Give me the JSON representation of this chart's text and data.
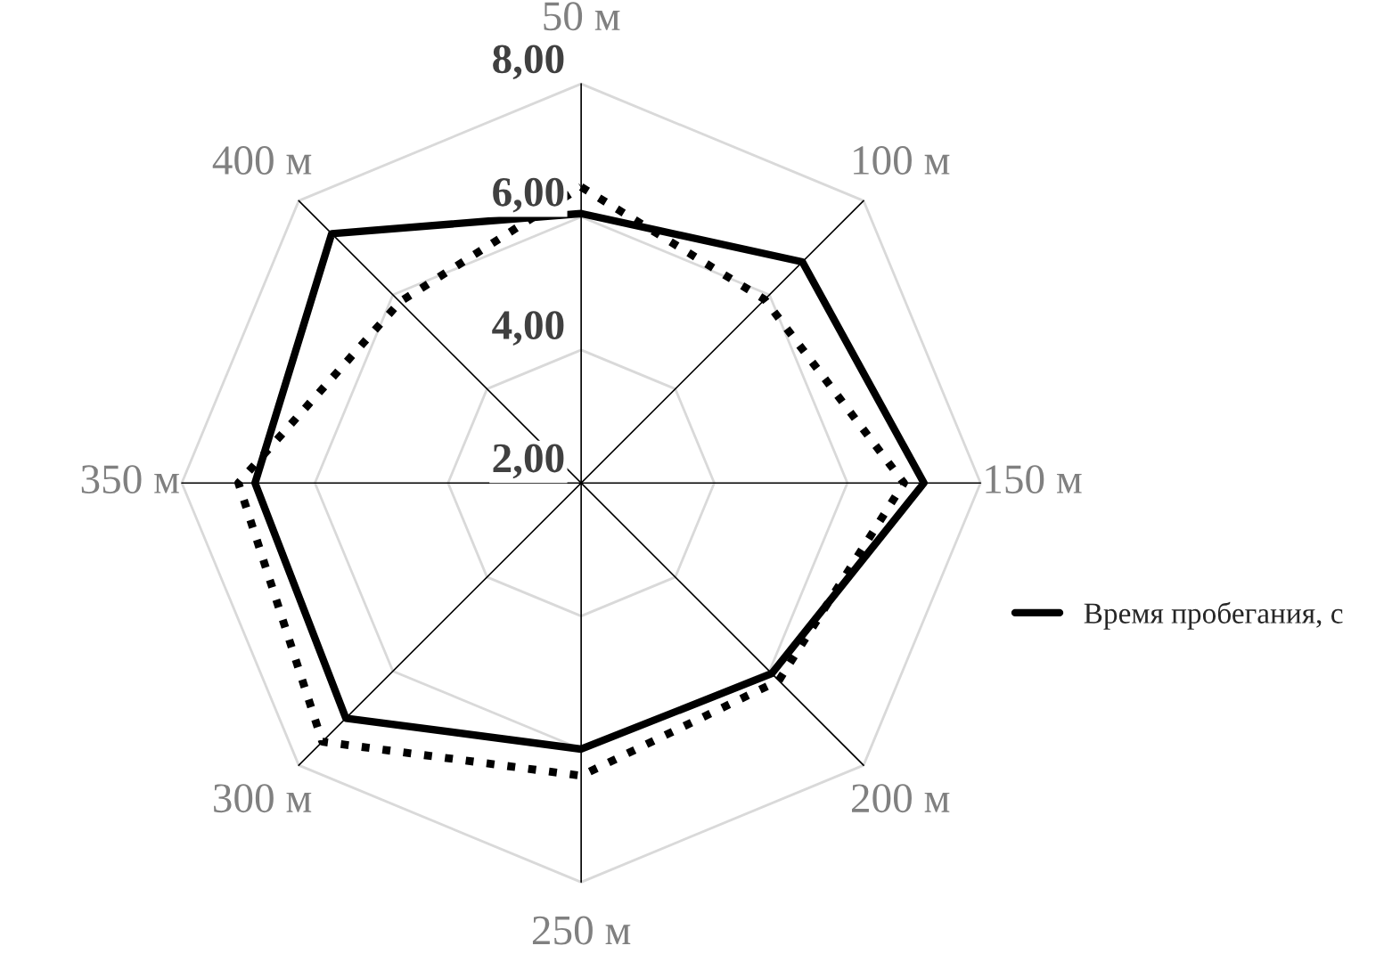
{
  "chart_data": {
    "type": "radar",
    "categories": [
      "50 м",
      "100 м",
      "150 м",
      "200 м",
      "250 м",
      "300 м",
      "350 м",
      "400 м"
    ],
    "ylim": [
      2,
      8
    ],
    "yticks": [
      {
        "value": 2,
        "label": "2,00"
      },
      {
        "value": 4,
        "label": "4,00"
      },
      {
        "value": 6,
        "label": "6,00"
      },
      {
        "value": 8,
        "label": "8,00"
      }
    ],
    "grid": true,
    "legend": "right",
    "marker": "none",
    "series": [
      {
        "name": "Время пробегания, с",
        "color": "#000000",
        "line_style": "solid",
        "values": [
          6.05,
          6.7,
          7.15,
          6.05,
          6.0,
          7.0,
          6.9,
          7.3
        ]
      },
      {
        "color": "#000000",
        "line_style": "dotted",
        "values": [
          6.45,
          5.9,
          6.85,
          6.2,
          6.4,
          7.5,
          7.15,
          5.85
        ]
      }
    ]
  }
}
